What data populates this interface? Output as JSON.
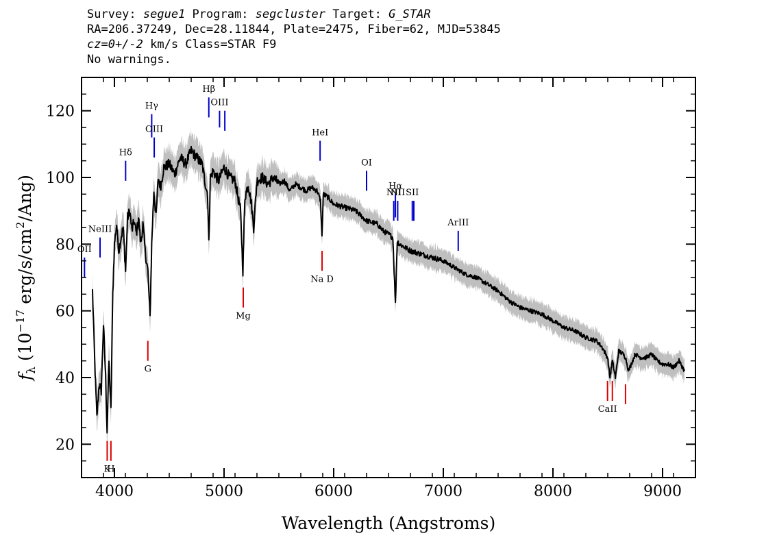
{
  "header": {
    "l1_a": "Survey: ",
    "survey": "segue1",
    "l1_b": " Program: ",
    "program": "segcluster",
    "l1_c": " Target: ",
    "target": "G_STAR",
    "line2": "RA=206.37249, Dec=28.11844, Plate=2475, Fiber=62, MJD=53845",
    "cz": "cz=0+/-2",
    "line3_rest": " km/s Class=STAR F9",
    "line4": "No warnings."
  },
  "chart_data": {
    "type": "line",
    "title": "",
    "xlabel": "Wavelength (Angstroms)",
    "ylabel": "f_λ (10^-17 erg/s/cm^2/Ang)",
    "ylabel_parts": {
      "f": "f",
      "sub": "λ",
      "pre": " (10",
      "exp": "−17",
      "mid": " erg/s/cm",
      "exp2": "2",
      "post": "/Ang)"
    },
    "xlim": [
      3700,
      9300
    ],
    "ylim": [
      10,
      130
    ],
    "x_ticks": [
      4000,
      5000,
      6000,
      7000,
      8000,
      9000
    ],
    "x_tick_labels": [
      "4000",
      "5000",
      "6000",
      "7000",
      "8000",
      "9000"
    ],
    "y_ticks": [
      20,
      40,
      60,
      80,
      100,
      120
    ],
    "y_tick_labels": [
      "20",
      "40",
      "60",
      "80",
      "100",
      "120"
    ],
    "x_minor_step": 200,
    "y_minor_step": 5,
    "colors": {
      "flux": "#000000",
      "error_band": "#bfbfbf",
      "emission": "#0000cc",
      "absorption": "#dd0000"
    },
    "series": [
      {
        "kind": "flux",
        "x": [
          3800,
          3820,
          3840,
          3860,
          3880,
          3900,
          3920,
          3933,
          3950,
          3968,
          3985,
          4000,
          4020,
          4040,
          4060,
          4080,
          4102,
          4120,
          4140,
          4160,
          4180,
          4200,
          4220,
          4240,
          4260,
          4280,
          4305,
          4325,
          4340,
          4360,
          4380,
          4400,
          4420,
          4450,
          4500,
          4550,
          4600,
          4650,
          4700,
          4750,
          4800,
          4830,
          4850,
          4861,
          4875,
          4900,
          4950,
          5000,
          5050,
          5100,
          5150,
          5172,
          5190,
          5220,
          5250,
          5270,
          5300,
          5350,
          5400,
          5450,
          5500,
          5550,
          5600,
          5650,
          5700,
          5750,
          5800,
          5850,
          5880,
          5893,
          5905,
          5950,
          6000,
          6100,
          6200,
          6300,
          6400,
          6450,
          6500,
          6540,
          6563,
          6580,
          6600,
          6700,
          6800,
          6900,
          7000,
          7100,
          7200,
          7300,
          7400,
          7500,
          7600,
          7700,
          7800,
          7900,
          8000,
          8100,
          8200,
          8300,
          8400,
          8450,
          8498,
          8520,
          8542,
          8570,
          8600,
          8640,
          8662,
          8690,
          8750,
          8800,
          8850,
          8900,
          8950,
          9000,
          9050,
          9100,
          9150,
          9200
        ],
        "y": [
          66,
          45,
          28,
          38,
          36,
          56,
          40,
          24,
          45,
          30,
          65,
          80,
          86,
          78,
          82,
          85,
          72,
          88,
          90,
          84,
          87,
          83,
          88,
          80,
          86,
          78,
          72,
          58,
          80,
          96,
          88,
          100,
          97,
          103,
          104,
          101,
          106,
          104,
          108,
          106,
          104,
          98,
          95,
          80,
          100,
          102,
          99,
          103,
          100,
          99,
          90,
          72,
          94,
          98,
          92,
          85,
          99,
          100,
          98,
          100,
          98,
          99,
          96,
          98,
          97,
          96,
          97,
          96,
          93,
          82,
          95,
          94,
          92,
          91,
          90,
          87,
          86,
          84,
          83,
          82,
          62,
          81,
          80,
          78,
          77,
          76,
          75,
          73,
          71,
          70,
          68,
          66,
          63,
          61,
          60,
          59,
          57,
          55,
          54,
          52,
          51,
          49,
          46,
          40,
          45,
          40,
          48,
          47,
          46,
          42,
          47,
          46,
          46,
          47,
          45,
          44,
          44,
          43,
          45,
          42
        ]
      }
    ],
    "lines": [
      {
        "label": "OII",
        "wave": 3727,
        "type": "emission",
        "y0": 70,
        "y1": 76
      },
      {
        "label": "NeIII",
        "wave": 3869,
        "type": "emission",
        "y0": 76,
        "y1": 82
      },
      {
        "label": "Hδ",
        "wave": 4102,
        "type": "emission",
        "y0": 99,
        "y1": 105
      },
      {
        "label": "Hγ",
        "wave": 4340,
        "type": "emission",
        "y0": 112,
        "y1": 119
      },
      {
        "label": "OIII",
        "wave": 4363,
        "type": "emission",
        "y0": 106,
        "y1": 112
      },
      {
        "label": "Hβ",
        "wave": 4861,
        "type": "emission",
        "y0": 118,
        "y1": 124
      },
      {
        "label": "OIII",
        "wave": 4959,
        "type": "emission",
        "y0": 115,
        "y1": 120
      },
      {
        "label": "",
        "wave": 5007,
        "type": "emission",
        "y0": 114,
        "y1": 120
      },
      {
        "label": "HeI",
        "wave": 5876,
        "type": "emission",
        "y0": 105,
        "y1": 111
      },
      {
        "label": "OI",
        "wave": 6300,
        "type": "emission",
        "y0": 96,
        "y1": 102
      },
      {
        "label": "NII",
        "wave": 6548,
        "type": "emission",
        "y0": 87,
        "y1": 93
      },
      {
        "label": "Hα",
        "wave": 6563,
        "type": "emission",
        "y0": 88,
        "y1": 95
      },
      {
        "label": "NII",
        "wave": 6584,
        "type": "emission",
        "y0": 87,
        "y1": 93
      },
      {
        "label": "SII",
        "wave": 6717,
        "type": "emission",
        "y0": 87,
        "y1": 93
      },
      {
        "label": "",
        "wave": 6731,
        "type": "emission",
        "y0": 87,
        "y1": 93
      },
      {
        "label": "ArIII",
        "wave": 7136,
        "type": "emission",
        "y0": 78,
        "y1": 84
      },
      {
        "label": "K",
        "wave": 3934,
        "type": "absorption",
        "y0": 15,
        "y1": 21
      },
      {
        "label": "H",
        "wave": 3968,
        "type": "absorption",
        "y0": 15,
        "y1": 21
      },
      {
        "label": "G",
        "wave": 4305,
        "type": "absorption",
        "y0": 45,
        "y1": 51
      },
      {
        "label": "Mg",
        "wave": 5175,
        "type": "absorption",
        "y0": 61,
        "y1": 67
      },
      {
        "label": "Na D",
        "wave": 5894,
        "type": "absorption",
        "y0": 72,
        "y1": 78
      },
      {
        "label": "CaII",
        "wave": 8498,
        "type": "absorption",
        "y0": 33,
        "y1": 39
      },
      {
        "label": "",
        "wave": 8542,
        "type": "absorption",
        "y0": 33,
        "y1": 39
      },
      {
        "label": "",
        "wave": 8662,
        "type": "absorption",
        "y0": 32,
        "y1": 38
      }
    ]
  }
}
